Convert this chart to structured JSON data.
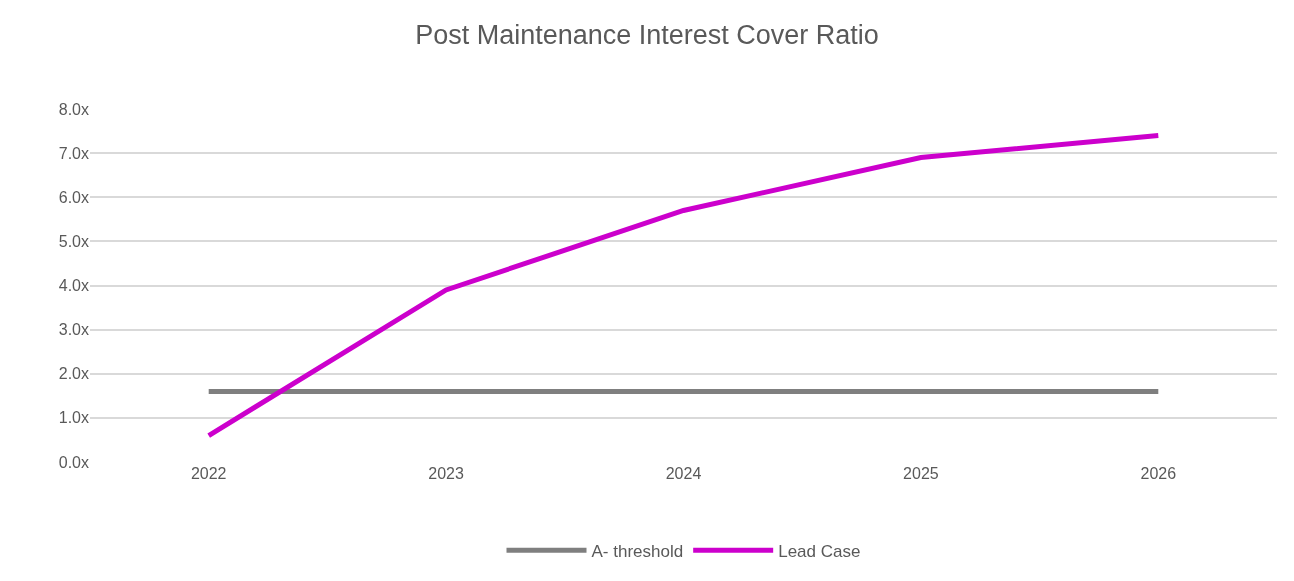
{
  "chart_data": {
    "type": "line",
    "title": "Post Maintenance Interest Cover Ratio",
    "categories": [
      "2022",
      "2023",
      "2024",
      "2025",
      "2026"
    ],
    "series": [
      {
        "name": "A- threshold",
        "color": "#7f7f7f",
        "values": [
          1.6,
          1.6,
          1.6,
          1.6,
          1.6
        ]
      },
      {
        "name": "Lead Case",
        "color": "#cc00cc",
        "values": [
          0.6,
          3.9,
          5.7,
          6.9,
          7.4
        ]
      }
    ],
    "ylim": [
      0,
      8
    ],
    "yticks": [
      {
        "value": 0,
        "label": "0.0x"
      },
      {
        "value": 1,
        "label": "1.0x"
      },
      {
        "value": 2,
        "label": "2.0x"
      },
      {
        "value": 3,
        "label": "3.0x"
      },
      {
        "value": 4,
        "label": "4.0x"
      },
      {
        "value": 5,
        "label": "5.0x"
      },
      {
        "value": 6,
        "label": "6.0x"
      },
      {
        "value": 7,
        "label": "7.0x"
      },
      {
        "value": 8,
        "label": "8.0x"
      }
    ],
    "grid": "y",
    "legend": "bottom",
    "line_style": "solid",
    "marker": "none"
  }
}
